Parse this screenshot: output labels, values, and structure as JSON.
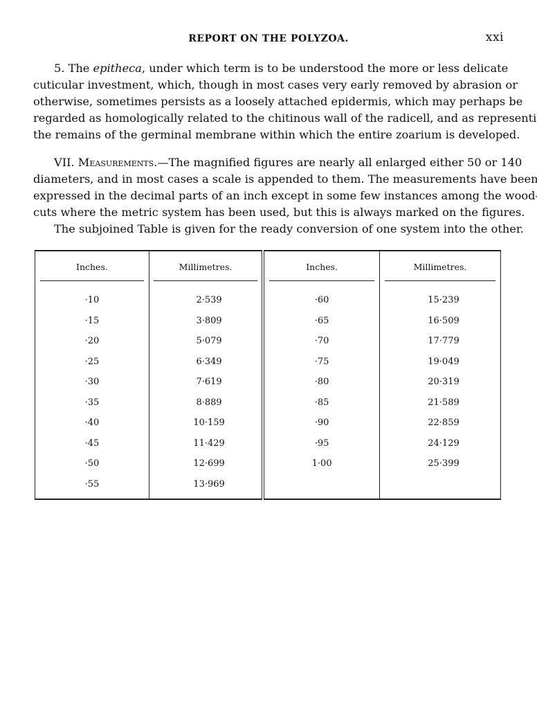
{
  "header": {
    "title": "REPORT ON THE POLYZOA.",
    "page_number": "xxi"
  },
  "paragraph1": {
    "lines": [
      [
        "5. The ",
        "epitheca",
        ", under which term is to be understood the more or less delicate"
      ],
      "cuticular investment, which, though in most cases very early removed by abrasion or",
      "otherwise, sometimes persists as a loosely attached epidermis, which may perhaps be",
      "regarded as homologically related to the chitinous wall of the radicell, and as representing",
      "the remains of the germinal membrane within which the entire zoarium is developed."
    ]
  },
  "paragraph2": {
    "section": "VII. ",
    "heading": "Measurements.",
    "lines": [
      "—The magnified figures are nearly all enlarged either 50 or 140",
      "diameters, and in most cases a scale is appended to them.  The measurements have been",
      "expressed in the decimal parts of an inch except in some few instances among the wood-",
      "cuts where the metric system has been used, but this is always marked on the figures."
    ]
  },
  "paragraph3": "The subjoined Table is given for the ready conversion of one system into the other.",
  "table": {
    "headers": [
      "Inches.",
      "Millimetres.",
      "Inches.",
      "Millimetres."
    ],
    "rows": [
      [
        "·10",
        "2·539",
        "·60",
        "15·239"
      ],
      [
        "·15",
        "3·809",
        "·65",
        "16·509"
      ],
      [
        "·20",
        "5·079",
        "·70",
        "17·779"
      ],
      [
        "·25",
        "6·349",
        "·75",
        "19·049"
      ],
      [
        "·30",
        "7·619",
        "·80",
        "20·319"
      ],
      [
        "·35",
        "8·889",
        "·85",
        "21·589"
      ],
      [
        "·40",
        "10·159",
        "·90",
        "22·859"
      ],
      [
        "·45",
        "11·429",
        "·95",
        "24·129"
      ],
      [
        "·50",
        "12·699",
        "1·00",
        "25·399"
      ],
      [
        "·55",
        "13·969",
        "",
        ""
      ]
    ]
  }
}
